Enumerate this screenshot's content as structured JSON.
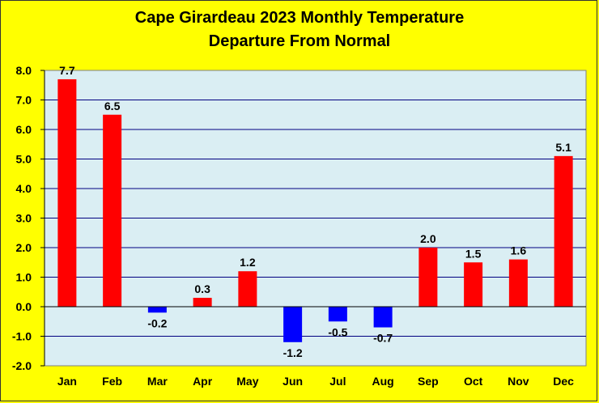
{
  "chart_data": {
    "type": "bar",
    "title": "Cape Girardeau 2023 Monthly Temperature",
    "subtitle": "Departure From Normal",
    "categories": [
      "Jan",
      "Feb",
      "Mar",
      "Apr",
      "May",
      "Jun",
      "Jul",
      "Aug",
      "Sep",
      "Oct",
      "Nov",
      "Dec"
    ],
    "values": [
      7.7,
      6.5,
      -0.2,
      0.3,
      1.2,
      -1.2,
      -0.5,
      -0.7,
      2.0,
      1.5,
      1.6,
      5.1
    ],
    "data_labels": [
      "7.7",
      "6.5",
      "-0.2",
      "0.3",
      "1.2",
      "-1.2",
      "-0.5",
      "-0.7",
      "2.0",
      "1.5",
      "1.6",
      "5.1"
    ],
    "ylim": [
      -2.0,
      8.0
    ],
    "yticks": [
      "8.0",
      "7.0",
      "6.0",
      "5.0",
      "4.0",
      "3.0",
      "2.0",
      "1.0",
      "0.0",
      "-1.0",
      "-2.0"
    ],
    "xlabel": "",
    "ylabel": "",
    "grid": true,
    "colors": {
      "positive": "#ff0000",
      "negative": "#0000ff",
      "plot_background": "#daeef3",
      "page_background": "#ffff00",
      "gridline": "#000080"
    }
  }
}
